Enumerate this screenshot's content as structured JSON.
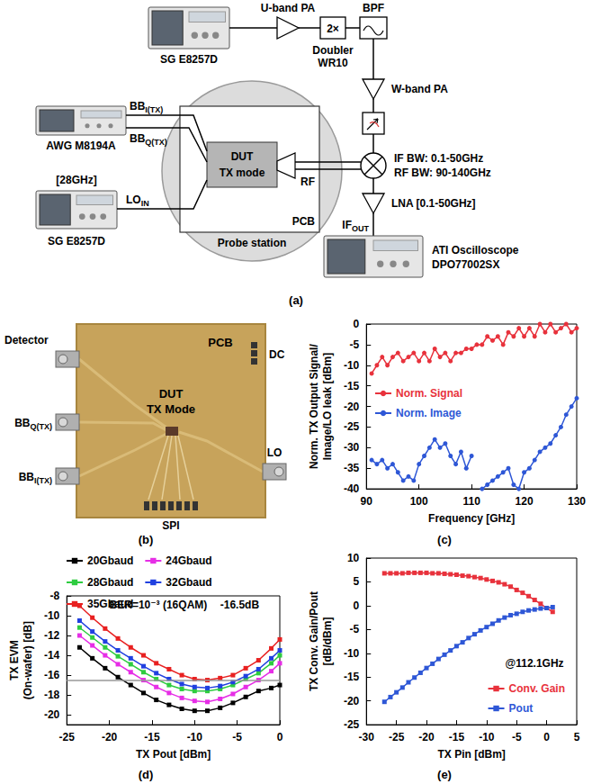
{
  "diagram": {
    "panel": "(a)",
    "nodes": {
      "sg_top": {
        "label": "SG E8257D"
      },
      "u_pa": {
        "label": "U-band PA"
      },
      "doubler": {
        "label": "2×",
        "lines": [
          "Doubler",
          "WR10"
        ]
      },
      "bpf": {
        "label": "BPF"
      },
      "w_pa": {
        "label": "W-band PA"
      },
      "mixer": {
        "lines": [
          "IF BW: 0.1-50GHz",
          "RF BW: 90-140GHz"
        ]
      },
      "lna": {
        "label": "LNA [0.1-50GHz]"
      },
      "if_out": {
        "text": "IF",
        "sub": "OUT"
      },
      "scope": {
        "lines": [
          "ATI Oscilloscope",
          "DPO77002SX"
        ]
      },
      "awg": {
        "label": "AWG M8194A"
      },
      "bb_i": {
        "text": "BB",
        "sub": "I(TX)"
      },
      "bb_q": {
        "text": "BB",
        "sub": "Q(TX)"
      },
      "lo_freq": {
        "label": "[28GHz]"
      },
      "lo_in": {
        "text": "LO",
        "sub": "IN"
      },
      "sg_bottom": {
        "label": "SG E8257D"
      },
      "dut": {
        "lines": [
          "DUT",
          "TX mode"
        ]
      },
      "rf": {
        "label": "RF"
      },
      "pcb": {
        "label": "PCB"
      },
      "probe": {
        "label": "Probe station"
      }
    }
  },
  "photo": {
    "panel": "(b)",
    "labels": {
      "detector": "Detector",
      "pcb": "PCB",
      "dc": "DC",
      "dut": [
        "DUT",
        "TX Mode"
      ],
      "bb_q": {
        "text": "BB",
        "sub": "Q(TX)"
      },
      "bb_i": {
        "text": "BB",
        "sub": "I(TX)"
      },
      "lo": "LO",
      "spi": "SPI"
    }
  },
  "chart_data": [
    {
      "panel": "(c)",
      "type": "line",
      "x_label": "Frequency [GHz]",
      "y_label": "Norm. TX Output Signal/ Image/LO leak [dBm]",
      "x": [
        91,
        92,
        93,
        94,
        95,
        96,
        97,
        98,
        99,
        100,
        101,
        102,
        103,
        104,
        105,
        106,
        107,
        108,
        109,
        110,
        111,
        112,
        113,
        114,
        115,
        116,
        117,
        118,
        119,
        120,
        121,
        122,
        123,
        124,
        125,
        126,
        127,
        128,
        129,
        130
      ],
      "series": [
        {
          "name": "Norm. Signal",
          "color": "#e8323c",
          "marker": "circle",
          "values": [
            -12,
            -10,
            -8,
            -10,
            -8,
            -7,
            -9,
            -8,
            -7,
            -9,
            -7,
            -9,
            -6,
            -8,
            -7,
            -9,
            -7,
            -7,
            -6,
            -6,
            -5,
            -5,
            -3,
            -4,
            -3,
            -5,
            -2,
            -3,
            -1,
            -3,
            -1,
            -3,
            0,
            -2,
            0,
            -2,
            -1,
            0,
            -2,
            -1
          ]
        },
        {
          "name": "Norm. Image",
          "color": "#2e57d6",
          "marker": "circle",
          "values": [
            -33,
            -34,
            -33,
            -35,
            -34,
            -36,
            -38,
            -37,
            -38,
            -34,
            -32,
            -30,
            -28,
            -30,
            -29,
            -32,
            -34,
            -31,
            -35,
            -32,
            null,
            -40,
            -39,
            -38,
            -37,
            -36,
            -35,
            -39,
            -40,
            -36,
            -35,
            -33,
            -31,
            -30,
            -29,
            -27,
            -25,
            -22,
            -20,
            -18
          ]
        }
      ],
      "xlim": [
        90,
        130
      ],
      "xticks": [
        90,
        100,
        110,
        120,
        130
      ],
      "ylim": [
        -40,
        0
      ],
      "yticks": [
        -40,
        -35,
        -30,
        -25,
        -20,
        -15,
        -10,
        -5,
        0
      ],
      "grid": false,
      "legend": "left"
    },
    {
      "panel": "(d)",
      "type": "line",
      "x_label": "TX Pout [dBm]",
      "y_label": "TX EVM (On-wafer) [dB]",
      "x": [
        -23.5,
        -22,
        -20.5,
        -19,
        -17.5,
        -16,
        -14.5,
        -13,
        -11.5,
        -10,
        -8.5,
        -7,
        -5.5,
        -4,
        -2.5,
        -1,
        0
      ],
      "series": [
        {
          "name": "20Gbaud",
          "color": "#000000",
          "marker": "square",
          "values": [
            -13.2,
            -14.3,
            -15.3,
            -16.2,
            -17.0,
            -17.8,
            -18.5,
            -19.0,
            -19.4,
            -19.6,
            -19.6,
            -19.3,
            -18.8,
            -18.2,
            -17.6,
            -17.3,
            -17.0
          ]
        },
        {
          "name": "24Gbaud",
          "color": "#e62ee6",
          "marker": "square",
          "values": [
            -12.0,
            -13.0,
            -14.0,
            -14.9,
            -15.7,
            -16.5,
            -17.2,
            -17.8,
            -18.3,
            -18.6,
            -18.7,
            -18.4,
            -17.9,
            -17.2,
            -16.5,
            -15.6,
            -14.8
          ]
        },
        {
          "name": "28Gbaud",
          "color": "#2ecc40",
          "marker": "square",
          "values": [
            -11.2,
            -12.2,
            -13.2,
            -14.1,
            -14.9,
            -15.7,
            -16.4,
            -17.0,
            -17.4,
            -17.6,
            -17.6,
            -17.4,
            -17.0,
            -16.4,
            -15.8,
            -14.8,
            -14.0
          ]
        },
        {
          "name": "32Gbaud",
          "color": "#2040e0",
          "marker": "square",
          "values": [
            -10.5,
            -11.6,
            -12.6,
            -13.5,
            -14.3,
            -15.1,
            -15.8,
            -16.4,
            -16.9,
            -17.2,
            -17.3,
            -17.1,
            -16.7,
            -16.1,
            -15.4,
            -14.3,
            -13.5
          ]
        },
        {
          "name": "35Gbaud",
          "color": "#e82020",
          "marker": "square",
          "values": [
            -9.0,
            -10.2,
            -11.3,
            -12.3,
            -13.2,
            -14.0,
            -14.8,
            -15.4,
            -16.0,
            -16.4,
            -16.5,
            -16.3,
            -16.0,
            -15.3,
            -14.5,
            -13.3,
            -12.4
          ]
        }
      ],
      "threshold": {
        "value": -16.5,
        "label": "-16.5dB"
      },
      "annotation": "BER=10⁻³ (16QAM)",
      "xlim": [
        -25,
        0
      ],
      "xticks": [
        -25,
        -20,
        -15,
        -10,
        -5,
        0
      ],
      "ylim": [
        -21,
        -8
      ],
      "yticks": [
        -20,
        -18,
        -16,
        -14,
        -12,
        -10,
        -8
      ],
      "grid": false,
      "legend": "top"
    },
    {
      "panel": "(e)",
      "type": "line",
      "x_label": "TX Pin [dBm]",
      "y_label": "TX Conv. Gain/Pout [dB/dBm]",
      "x": [
        -27,
        -26,
        -25,
        -24,
        -23,
        -22,
        -21,
        -20,
        -19,
        -18,
        -17,
        -16,
        -15,
        -14,
        -13,
        -12,
        -11,
        -10,
        -9,
        -8,
        -7,
        -6,
        -5,
        -4,
        -3,
        -2,
        -1,
        0,
        1
      ],
      "series": [
        {
          "name": "Conv. Gain",
          "color": "#e8323c",
          "marker": "square",
          "values": [
            6.8,
            6.8,
            6.8,
            6.8,
            6.9,
            6.9,
            6.9,
            6.9,
            6.8,
            6.8,
            6.7,
            6.6,
            6.5,
            6.3,
            6.2,
            6.0,
            5.8,
            5.5,
            5.2,
            4.9,
            4.5,
            4.0,
            3.3,
            2.7,
            2.0,
            1.2,
            0.4,
            -0.5,
            -1.3
          ]
        },
        {
          "name": "Pout",
          "color": "#2e57d6",
          "marker": "square",
          "values": [
            -20.2,
            -19.2,
            -18.2,
            -17.2,
            -16.1,
            -15.1,
            -14.1,
            -13.1,
            -12.2,
            -11.2,
            -10.3,
            -9.4,
            -8.5,
            -7.7,
            -6.8,
            -6.0,
            -5.2,
            -4.5,
            -3.8,
            -3.1,
            -2.5,
            -2.0,
            -1.7,
            -1.3,
            -1.0,
            -0.8,
            -0.6,
            -0.5,
            -0.3
          ]
        }
      ],
      "annotation": "@112.1GHz",
      "xlim": [
        -30,
        5
      ],
      "xticks": [
        -30,
        -25,
        -20,
        -15,
        -10,
        -5,
        0,
        5
      ],
      "ylim": [
        -25,
        10
      ],
      "yticks": [
        -25,
        -20,
        -15,
        -10,
        -5,
        0,
        5,
        10
      ],
      "grid": false,
      "legend": "bottom-right"
    }
  ]
}
